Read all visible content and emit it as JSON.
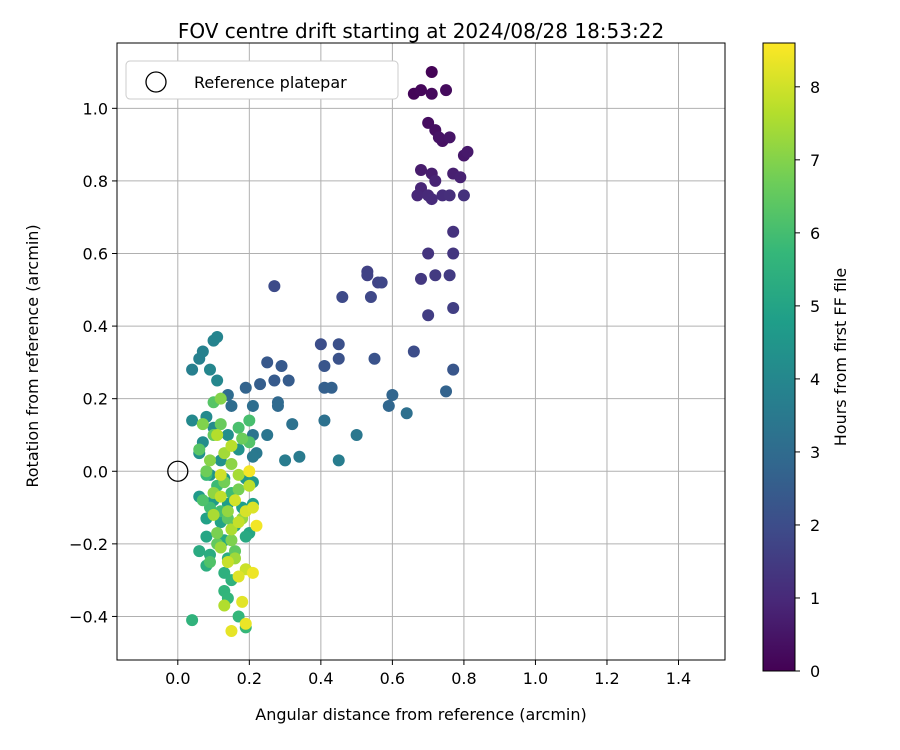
{
  "chart_data": {
    "type": "scatter",
    "title": "FOV centre drift starting at 2024/08/28 18:53:22",
    "xlabel": "Angular distance from reference (arcmin)",
    "ylabel": "Rotation from reference (arcmin)",
    "xlim": [
      -0.17,
      1.53
    ],
    "ylim": [
      -0.52,
      1.18
    ],
    "xticks": [
      0.0,
      0.2,
      0.4,
      0.6,
      0.8,
      1.0,
      1.2,
      1.4
    ],
    "xtick_labels": [
      "0.0",
      "0.2",
      "0.4",
      "0.6",
      "0.8",
      "1.0",
      "1.2",
      "1.4"
    ],
    "yticks": [
      -0.4,
      -0.2,
      0.0,
      0.2,
      0.4,
      0.6,
      0.8,
      1.0
    ],
    "ytick_labels": [
      "−0.4",
      "−0.2",
      "0.0",
      "0.2",
      "0.4",
      "0.6",
      "0.8",
      "1.0"
    ],
    "grid": true,
    "legend": {
      "position": "top-left",
      "entries": [
        {
          "label": "Reference platepar",
          "marker": "open-circle",
          "x": 0.0,
          "y": 0.0
        }
      ]
    },
    "colorbar": {
      "label": "Hours from first FF file",
      "colormap": "viridis",
      "range": [
        0,
        8.6
      ],
      "ticks": [
        0,
        1,
        2,
        3,
        4,
        5,
        6,
        7,
        8
      ],
      "tick_labels": [
        "0",
        "1",
        "2",
        "3",
        "4",
        "5",
        "6",
        "7",
        "8"
      ]
    },
    "points": [
      [
        0.71,
        1.1,
        0.05
      ],
      [
        0.66,
        1.04,
        0.1
      ],
      [
        0.68,
        1.05,
        0.15
      ],
      [
        0.71,
        1.04,
        0.2
      ],
      [
        0.75,
        1.05,
        0.25
      ],
      [
        0.7,
        0.96,
        0.3
      ],
      [
        0.72,
        0.94,
        0.35
      ],
      [
        0.74,
        0.91,
        0.4
      ],
      [
        0.73,
        0.92,
        0.45
      ],
      [
        0.76,
        0.92,
        0.5
      ],
      [
        0.8,
        0.87,
        0.55
      ],
      [
        0.81,
        0.88,
        0.6
      ],
      [
        0.68,
        0.83,
        0.65
      ],
      [
        0.71,
        0.82,
        0.7
      ],
      [
        0.77,
        0.82,
        0.75
      ],
      [
        0.79,
        0.81,
        0.8
      ],
      [
        0.72,
        0.8,
        0.85
      ],
      [
        0.68,
        0.78,
        0.9
      ],
      [
        0.67,
        0.76,
        0.95
      ],
      [
        0.7,
        0.76,
        1.0
      ],
      [
        0.71,
        0.75,
        1.05
      ],
      [
        0.74,
        0.76,
        1.1
      ],
      [
        0.76,
        0.76,
        1.15
      ],
      [
        0.8,
        0.76,
        1.2
      ],
      [
        0.77,
        0.66,
        1.25
      ],
      [
        0.7,
        0.6,
        1.3
      ],
      [
        0.77,
        0.6,
        1.35
      ],
      [
        0.68,
        0.53,
        1.4
      ],
      [
        0.72,
        0.54,
        1.45
      ],
      [
        0.76,
        0.54,
        1.5
      ],
      [
        0.7,
        0.43,
        1.55
      ],
      [
        0.77,
        0.45,
        1.6
      ],
      [
        0.53,
        0.55,
        1.65
      ],
      [
        0.53,
        0.54,
        1.7
      ],
      [
        0.56,
        0.52,
        1.75
      ],
      [
        0.57,
        0.52,
        1.8
      ],
      [
        0.54,
        0.48,
        1.85
      ],
      [
        0.46,
        0.48,
        1.9
      ],
      [
        0.27,
        0.51,
        1.95
      ],
      [
        0.66,
        0.33,
        2.0
      ],
      [
        0.4,
        0.35,
        2.05
      ],
      [
        0.45,
        0.35,
        2.1
      ],
      [
        0.45,
        0.31,
        2.15
      ],
      [
        0.55,
        0.31,
        2.2
      ],
      [
        0.41,
        0.29,
        2.25
      ],
      [
        0.77,
        0.28,
        2.3
      ],
      [
        0.25,
        0.3,
        2.35
      ],
      [
        0.29,
        0.29,
        2.4
      ],
      [
        0.27,
        0.25,
        2.45
      ],
      [
        0.31,
        0.25,
        2.5
      ],
      [
        0.23,
        0.24,
        2.55
      ],
      [
        0.41,
        0.23,
        2.6
      ],
      [
        0.43,
        0.23,
        2.65
      ],
      [
        0.75,
        0.22,
        2.7
      ],
      [
        0.19,
        0.23,
        2.75
      ],
      [
        0.6,
        0.21,
        2.8
      ],
      [
        0.59,
        0.18,
        2.85
      ],
      [
        0.28,
        0.19,
        2.9
      ],
      [
        0.28,
        0.18,
        2.95
      ],
      [
        0.14,
        0.21,
        3.0
      ],
      [
        0.15,
        0.18,
        3.05
      ],
      [
        0.21,
        0.18,
        3.1
      ],
      [
        0.64,
        0.16,
        3.15
      ],
      [
        0.41,
        0.14,
        3.2
      ],
      [
        0.32,
        0.13,
        3.25
      ],
      [
        0.21,
        0.1,
        3.3
      ],
      [
        0.25,
        0.1,
        3.35
      ],
      [
        0.5,
        0.1,
        3.4
      ],
      [
        0.22,
        0.05,
        3.45
      ],
      [
        0.21,
        0.04,
        3.5
      ],
      [
        0.34,
        0.04,
        3.55
      ],
      [
        0.3,
        0.03,
        3.6
      ],
      [
        0.45,
        0.03,
        3.65
      ],
      [
        0.04,
        0.28,
        3.7
      ],
      [
        0.06,
        0.31,
        3.75
      ],
      [
        0.07,
        0.33,
        3.8
      ],
      [
        0.1,
        0.36,
        3.85
      ],
      [
        0.11,
        0.37,
        3.9
      ],
      [
        0.09,
        0.28,
        3.95
      ],
      [
        0.11,
        0.25,
        4.0
      ],
      [
        0.04,
        0.14,
        4.05
      ],
      [
        0.08,
        0.15,
        4.1
      ],
      [
        0.1,
        0.12,
        4.15
      ],
      [
        0.07,
        0.08,
        4.2
      ],
      [
        0.14,
        0.1,
        4.25
      ],
      [
        0.06,
        0.05,
        4.3
      ],
      [
        0.12,
        0.03,
        4.35
      ],
      [
        0.17,
        0.06,
        4.4
      ],
      [
        0.09,
        -0.01,
        4.45
      ],
      [
        0.13,
        -0.02,
        4.5
      ],
      [
        0.19,
        -0.02,
        4.55
      ],
      [
        0.21,
        -0.03,
        4.6
      ],
      [
        0.06,
        -0.07,
        4.65
      ],
      [
        0.1,
        -0.08,
        4.7
      ],
      [
        0.14,
        -0.09,
        4.75
      ],
      [
        0.18,
        -0.1,
        4.8
      ],
      [
        0.21,
        -0.09,
        4.85
      ],
      [
        0.08,
        -0.13,
        4.9
      ],
      [
        0.12,
        -0.14,
        4.95
      ],
      [
        0.16,
        -0.15,
        5.0
      ],
      [
        0.2,
        -0.17,
        5.05
      ],
      [
        0.08,
        -0.18,
        5.1
      ],
      [
        0.13,
        -0.19,
        5.15
      ],
      [
        0.19,
        -0.18,
        5.2
      ],
      [
        0.06,
        -0.22,
        5.25
      ],
      [
        0.09,
        -0.23,
        5.3
      ],
      [
        0.14,
        -0.24,
        5.35
      ],
      [
        0.08,
        -0.26,
        5.4
      ],
      [
        0.13,
        -0.28,
        5.45
      ],
      [
        0.15,
        -0.3,
        5.5
      ],
      [
        0.04,
        -0.41,
        5.55
      ],
      [
        0.13,
        -0.33,
        5.6
      ],
      [
        0.14,
        -0.35,
        5.65
      ],
      [
        0.17,
        -0.4,
        5.7
      ],
      [
        0.19,
        -0.43,
        5.75
      ],
      [
        0.08,
        -0.01,
        5.8
      ],
      [
        0.11,
        -0.04,
        5.85
      ],
      [
        0.15,
        -0.06,
        5.9
      ],
      [
        0.09,
        -0.1,
        5.95
      ],
      [
        0.12,
        -0.11,
        6.0
      ],
      [
        0.2,
        0.14,
        6.05
      ],
      [
        0.17,
        0.12,
        6.1
      ],
      [
        0.07,
        -0.08,
        6.15
      ],
      [
        0.09,
        -0.25,
        6.2
      ],
      [
        0.2,
        0.08,
        6.25
      ],
      [
        0.1,
        0.19,
        6.3
      ],
      [
        0.06,
        0.06,
        6.35
      ],
      [
        0.14,
        -0.13,
        6.4
      ],
      [
        0.16,
        -0.22,
        6.45
      ],
      [
        0.11,
        -0.2,
        6.5
      ],
      [
        0.1,
        0.1,
        6.55
      ],
      [
        0.12,
        0.13,
        6.6
      ],
      [
        0.18,
        0.09,
        6.65
      ],
      [
        0.08,
        0.0,
        6.7
      ],
      [
        0.13,
        -0.03,
        6.75
      ],
      [
        0.17,
        -0.05,
        6.8
      ],
      [
        0.11,
        -0.17,
        6.85
      ],
      [
        0.15,
        -0.19,
        6.9
      ],
      [
        0.07,
        0.13,
        6.95
      ],
      [
        0.12,
        0.2,
        7.0
      ],
      [
        0.09,
        0.03,
        7.05
      ],
      [
        0.15,
        0.02,
        7.1
      ],
      [
        0.1,
        -0.06,
        7.15
      ],
      [
        0.14,
        -0.11,
        7.2
      ],
      [
        0.18,
        -0.13,
        7.25
      ],
      [
        0.12,
        -0.21,
        7.3
      ],
      [
        0.16,
        -0.24,
        7.35
      ],
      [
        0.13,
        0.05,
        7.4
      ],
      [
        0.17,
        -0.01,
        7.45
      ],
      [
        0.1,
        -0.12,
        7.5
      ],
      [
        0.15,
        -0.16,
        7.55
      ],
      [
        0.13,
        -0.37,
        7.6
      ],
      [
        0.11,
        0.1,
        7.65
      ],
      [
        0.15,
        0.07,
        7.7
      ],
      [
        0.2,
        -0.04,
        7.75
      ],
      [
        0.12,
        -0.07,
        7.8
      ],
      [
        0.17,
        -0.14,
        7.85
      ],
      [
        0.14,
        -0.25,
        7.9
      ],
      [
        0.19,
        -0.27,
        7.95
      ],
      [
        0.12,
        -0.01,
        8.0
      ],
      [
        0.16,
        -0.08,
        8.05
      ],
      [
        0.19,
        -0.11,
        8.1
      ],
      [
        0.21,
        -0.1,
        8.15
      ],
      [
        0.17,
        -0.29,
        8.2
      ],
      [
        0.18,
        -0.36,
        8.25
      ],
      [
        0.15,
        -0.44,
        8.3
      ],
      [
        0.19,
        -0.42,
        8.35
      ],
      [
        0.21,
        -0.28,
        8.4
      ],
      [
        0.22,
        -0.15,
        8.45
      ],
      [
        0.2,
        0.0,
        8.5
      ]
    ]
  }
}
